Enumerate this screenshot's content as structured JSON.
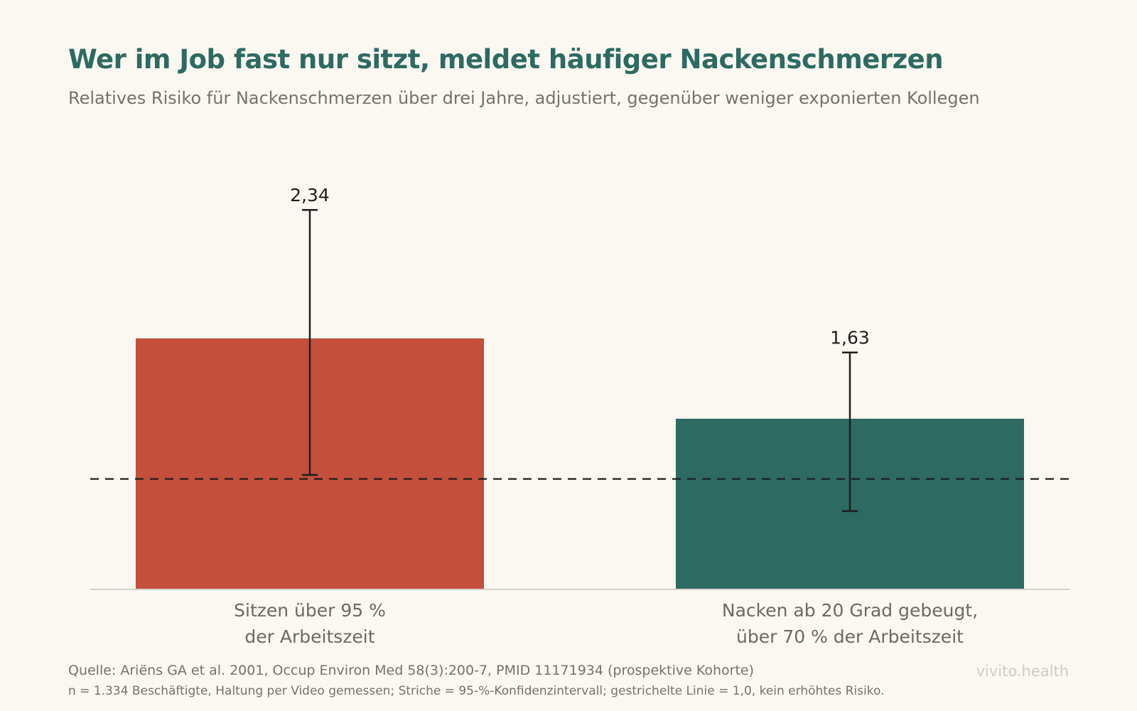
{
  "header": {
    "title": "Wer im Job fast nur sitzt, meldet häufiger Nackenschmerzen",
    "subtitle": "Relatives Risiko für Nackenschmerzen über drei Jahre, adjustiert, gegenüber weniger exponierten Kollegen"
  },
  "chart_data": {
    "type": "bar",
    "categories": [
      [
        "Sitzen über 95 %",
        "der Arbeitszeit"
      ],
      [
        "Nacken ab 20 Grad gebeugt,",
        "über 70 % der Arbeitszeit"
      ]
    ],
    "values": [
      1.7,
      1.3
    ],
    "ci_upper": [
      2.34,
      1.63
    ],
    "ci_upper_labels": [
      "2,34",
      "1,63"
    ],
    "ci_lower": [
      1.02,
      0.84
    ],
    "reference_line": 1.0,
    "ylim": [
      0.45,
      2.5
    ],
    "grid": false,
    "bar_colors": [
      "#c44f3b",
      "#2d6a62"
    ]
  },
  "footer": {
    "source": "Quelle: Ariëns GA et al. 2001, Occup Environ Med 58(3):200-7, PMID 11171934 (prospektive Kohorte)",
    "note": "n = 1.334 Beschäftigte, Haltung per Video gemessen; Striche = 95-%-Konfidenzintervall; gestrichelte Linie = 1,0, kein erhöhtes Risiko.",
    "brand": "vivito.health"
  }
}
